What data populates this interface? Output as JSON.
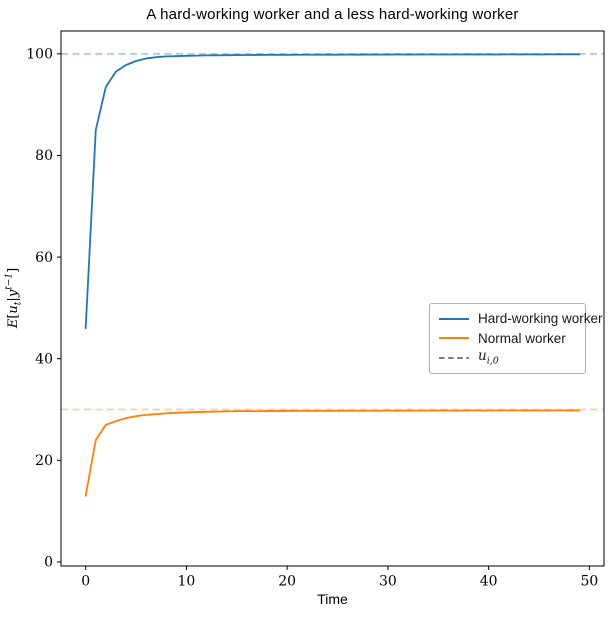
{
  "figure": {
    "title": "A hard-working worker and a less hard-working worker",
    "xlabel": "Time",
    "ylabel": {
      "E": "E",
      "open": "[",
      "u": "u",
      "u_sub": "t",
      "bar": "|",
      "y": "y",
      "y_sup": "t−1",
      "close": "]"
    }
  },
  "chart_data": {
    "type": "line",
    "title": "A hard-working worker and a less hard-working worker",
    "xlabel": "Time",
    "ylabel": "E[u_t | y^{t-1}]",
    "xlim": [
      -2.45,
      51.45
    ],
    "ylim": [
      -0.8,
      104.5
    ],
    "xticks": [
      0,
      10,
      20,
      30,
      40,
      50
    ],
    "yticks": [
      0,
      20,
      40,
      60,
      80,
      100
    ],
    "grid": false,
    "legend_position": "center right",
    "series": [
      {
        "id": "hard-working-worker",
        "name": "Hard-working worker",
        "color": "#1f77b4",
        "style": "solid",
        "x": [
          0,
          1,
          2,
          3,
          4,
          5,
          6,
          7,
          8,
          9,
          10,
          11,
          12,
          13,
          14,
          15,
          16,
          17,
          18,
          19,
          20,
          21,
          22,
          23,
          24,
          25,
          26,
          27,
          28,
          29,
          30,
          31,
          32,
          33,
          34,
          35,
          36,
          37,
          38,
          39,
          40,
          41,
          42,
          43,
          44,
          45,
          46,
          47,
          48,
          49
        ],
        "values": [
          46.0,
          85.0,
          93.5,
          96.5,
          97.8,
          98.6,
          99.1,
          99.35,
          99.5,
          99.55,
          99.62,
          99.66,
          99.7,
          99.72,
          99.74,
          99.76,
          99.78,
          99.79,
          99.8,
          99.81,
          99.8,
          99.82,
          99.83,
          99.82,
          99.84,
          99.83,
          99.85,
          99.84,
          99.86,
          99.85,
          99.86,
          99.87,
          99.86,
          99.88,
          99.87,
          99.88,
          99.88,
          99.87,
          99.89,
          99.88,
          99.89,
          99.88,
          99.9,
          99.89,
          99.9,
          99.89,
          99.9,
          99.91,
          99.9,
          99.91
        ]
      },
      {
        "id": "normal-worker",
        "name": "Normal worker",
        "color": "#ff7f0e",
        "style": "solid",
        "x": [
          0,
          1,
          2,
          3,
          4,
          5,
          6,
          7,
          8,
          9,
          10,
          11,
          12,
          13,
          14,
          15,
          16,
          17,
          18,
          19,
          20,
          21,
          22,
          23,
          24,
          25,
          26,
          27,
          28,
          29,
          30,
          31,
          32,
          33,
          34,
          35,
          36,
          37,
          38,
          39,
          40,
          41,
          42,
          43,
          44,
          45,
          46,
          47,
          48,
          49
        ],
        "values": [
          13.0,
          24.0,
          27.0,
          27.7,
          28.3,
          28.7,
          28.95,
          29.1,
          29.25,
          29.35,
          29.45,
          29.5,
          29.55,
          29.6,
          29.63,
          29.68,
          29.7,
          29.66,
          29.72,
          29.7,
          29.74,
          29.72,
          29.75,
          29.73,
          29.76,
          29.74,
          29.77,
          29.75,
          29.78,
          29.76,
          29.78,
          29.77,
          29.79,
          29.78,
          29.8,
          29.79,
          29.8,
          29.79,
          29.81,
          29.8,
          29.81,
          29.8,
          29.82,
          29.81,
          29.82,
          29.81,
          29.82,
          29.83,
          29.82,
          29.83
        ]
      }
    ],
    "reference_lines": [
      {
        "id": "u0-hard-working",
        "label": "u_i,0",
        "y": 100,
        "color": "#a5cbe4",
        "style": "dashed"
      },
      {
        "id": "u0-normal",
        "label": "u_i,0",
        "y": 30,
        "color": "#ffcc9f",
        "style": "dashed"
      }
    ],
    "legend": [
      {
        "label": "Hard-working worker",
        "color": "#1f77b4",
        "dash": false
      },
      {
        "label": "Normal worker",
        "color": "#ff7f0e",
        "dash": false
      },
      {
        "label": "u_i,0",
        "label_base": "u",
        "label_sub": "i,0",
        "color": "#7f7f7f",
        "dash": true
      }
    ]
  }
}
